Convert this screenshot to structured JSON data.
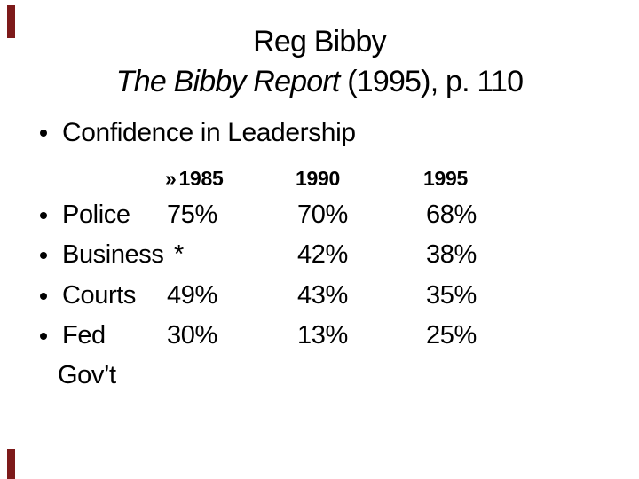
{
  "slide": {
    "background_color": "#ffffff",
    "text_color": "#000000",
    "accent_color": "#7d1a1a",
    "title": {
      "line1": "Reg Bibby",
      "line2_italic": "The Bibby Report",
      "line2_rest": " (1995), p. 110"
    },
    "bullet": {
      "label": "Confidence in Leadership"
    },
    "table": {
      "header": {
        "marker": "»",
        "col1": "1985",
        "col2": "1990",
        "col3": "1995"
      },
      "rows": [
        {
          "label": "Police",
          "y1985": "75%",
          "y1990": "70%",
          "y1995": "68%"
        },
        {
          "label": "Business",
          "y1985": "*",
          "y1990": "42%",
          "y1995": "38%"
        },
        {
          "label": "Courts",
          "y1985": "49%",
          "y1990": "43%",
          "y1995": "35%"
        },
        {
          "label": "Fed",
          "y1985": "30%",
          "y1990": "13%",
          "y1995": "25%"
        }
      ],
      "label_continuation": "Gov’t"
    }
  }
}
